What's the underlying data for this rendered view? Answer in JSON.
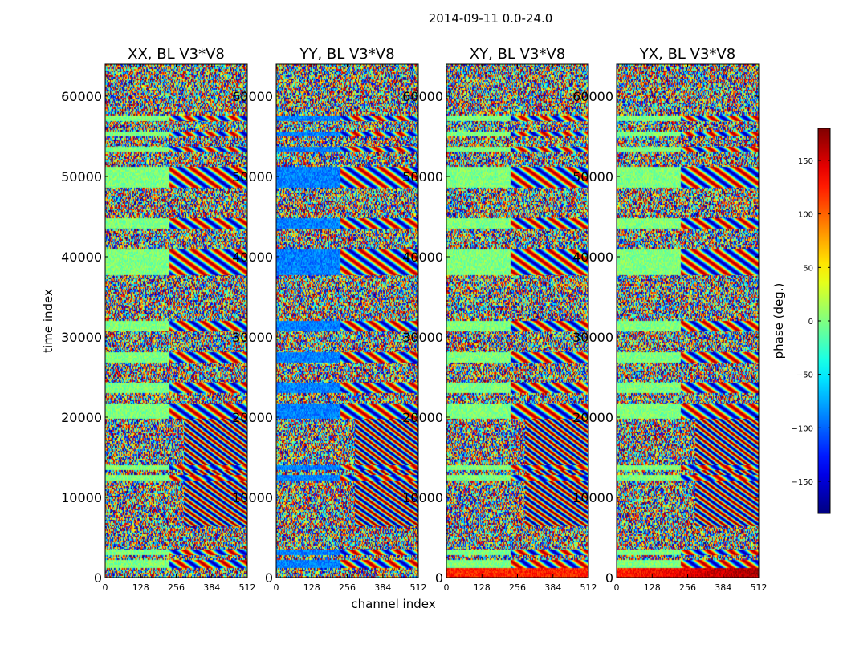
{
  "chart_data": {
    "type": "heatmap",
    "title": "2014-09-11 0.0-24.0",
    "xlabel": "channel index",
    "ylabel": "time index",
    "x_ticks": [
      0,
      128,
      256,
      384,
      512
    ],
    "y_ticks": [
      0,
      10000,
      20000,
      30000,
      40000,
      50000,
      60000
    ],
    "xlim": [
      0,
      512
    ],
    "ylim": [
      0,
      64000
    ],
    "panels": [
      {
        "title": "XX, BL V3*V8"
      },
      {
        "title": "YY, BL V3*V8"
      },
      {
        "title": "XY, BL V3*V8"
      },
      {
        "title": "YX, BL V3*V8"
      }
    ],
    "colorbar": {
      "label": "phase (deg.)",
      "range": [
        -180,
        180
      ],
      "ticks": [
        150,
        100,
        50,
        0,
        -50,
        -100,
        -150
      ],
      "tick_labels": [
        "150",
        "100",
        "50",
        "0",
        "−50",
        "−100",
        "−150"
      ],
      "colormap": "jet"
    }
  }
}
